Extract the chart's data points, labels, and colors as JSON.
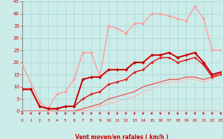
{
  "background_color": "#ccecea",
  "grid_color": "#aad8d5",
  "xlabel": "Vent moyen/en rafales ( km/h )",
  "xlim": [
    0,
    23
  ],
  "ylim": [
    0,
    45
  ],
  "yticks": [
    0,
    5,
    10,
    15,
    20,
    25,
    30,
    35,
    40,
    45
  ],
  "xticks": [
    0,
    1,
    2,
    3,
    4,
    5,
    6,
    7,
    8,
    9,
    10,
    11,
    12,
    13,
    14,
    15,
    16,
    17,
    18,
    19,
    20,
    21,
    22,
    23
  ],
  "series": [
    {
      "x": [
        0,
        1,
        2,
        3,
        4,
        5,
        6,
        7,
        8,
        9,
        10,
        11,
        12,
        13,
        14,
        15,
        16,
        17,
        18,
        19,
        20,
        21,
        22,
        23
      ],
      "y": [
        9,
        9,
        2,
        1,
        1,
        2,
        2,
        13,
        14,
        14,
        17,
        17,
        17,
        20,
        20,
        23,
        23,
        24,
        22,
        23,
        24,
        20,
        15,
        16
      ],
      "color": "#cc0000",
      "linewidth": 1.5,
      "marker": "D",
      "markersize": 2.0,
      "zorder": 5
    },
    {
      "x": [
        0,
        1,
        2,
        3,
        4,
        5,
        6,
        7,
        8,
        9,
        10,
        11,
        12,
        13,
        14,
        15,
        16,
        17,
        18,
        19,
        20,
        21,
        22,
        23
      ],
      "y": [
        9,
        9,
        2,
        1,
        1,
        2,
        2,
        5,
        7,
        8,
        11,
        12,
        13,
        16,
        17,
        20,
        22,
        22,
        20,
        21,
        22,
        19,
        14,
        15
      ],
      "color": "#dd2222",
      "linewidth": 1.2,
      "marker": "D",
      "markersize": 1.8,
      "zorder": 4
    },
    {
      "x": [
        0,
        2,
        3,
        4,
        5,
        6,
        7,
        8,
        9,
        10,
        11,
        12,
        13,
        14,
        15,
        16,
        17,
        18,
        19,
        20,
        21,
        22,
        23
      ],
      "y": [
        19,
        4,
        1,
        7,
        8,
        13,
        24,
        24,
        14,
        35,
        34,
        32,
        36,
        36,
        40,
        40,
        39,
        38,
        37,
        43,
        38,
        25,
        25
      ],
      "color": "#ff9999",
      "linewidth": 1.0,
      "marker": "D",
      "markersize": 1.8,
      "zorder": 3
    },
    {
      "x": [
        0,
        1,
        2,
        3,
        4,
        5,
        6,
        7,
        8,
        9,
        10,
        11,
        12,
        13,
        14,
        15,
        16,
        17,
        18,
        19,
        20,
        21,
        22,
        23
      ],
      "y": [
        0,
        0,
        0,
        0,
        0,
        0,
        0,
        1,
        2,
        3,
        5,
        6,
        7,
        8,
        10,
        11,
        12,
        13,
        13,
        14,
        14,
        13,
        14,
        16
      ],
      "color": "#ee5555",
      "linewidth": 1.0,
      "marker": null,
      "markersize": 0,
      "zorder": 2
    },
    {
      "x": [
        0,
        1,
        2,
        3,
        4,
        5,
        6,
        7,
        8,
        9,
        10,
        11,
        12,
        13,
        14,
        15,
        16,
        17,
        18,
        19,
        20,
        21,
        22,
        23
      ],
      "y": [
        0,
        0,
        0,
        0,
        0,
        0,
        0,
        0,
        1,
        2,
        3,
        4,
        5,
        6,
        8,
        9,
        11,
        12,
        12,
        13,
        13,
        12,
        13,
        15
      ],
      "color": "#ffbbbb",
      "linewidth": 0.9,
      "marker": null,
      "markersize": 0,
      "zorder": 1
    }
  ],
  "arrow_color": "#cc0000",
  "tick_color": "#cc0000",
  "label_color": "#cc0000",
  "spine_color": "#888888"
}
